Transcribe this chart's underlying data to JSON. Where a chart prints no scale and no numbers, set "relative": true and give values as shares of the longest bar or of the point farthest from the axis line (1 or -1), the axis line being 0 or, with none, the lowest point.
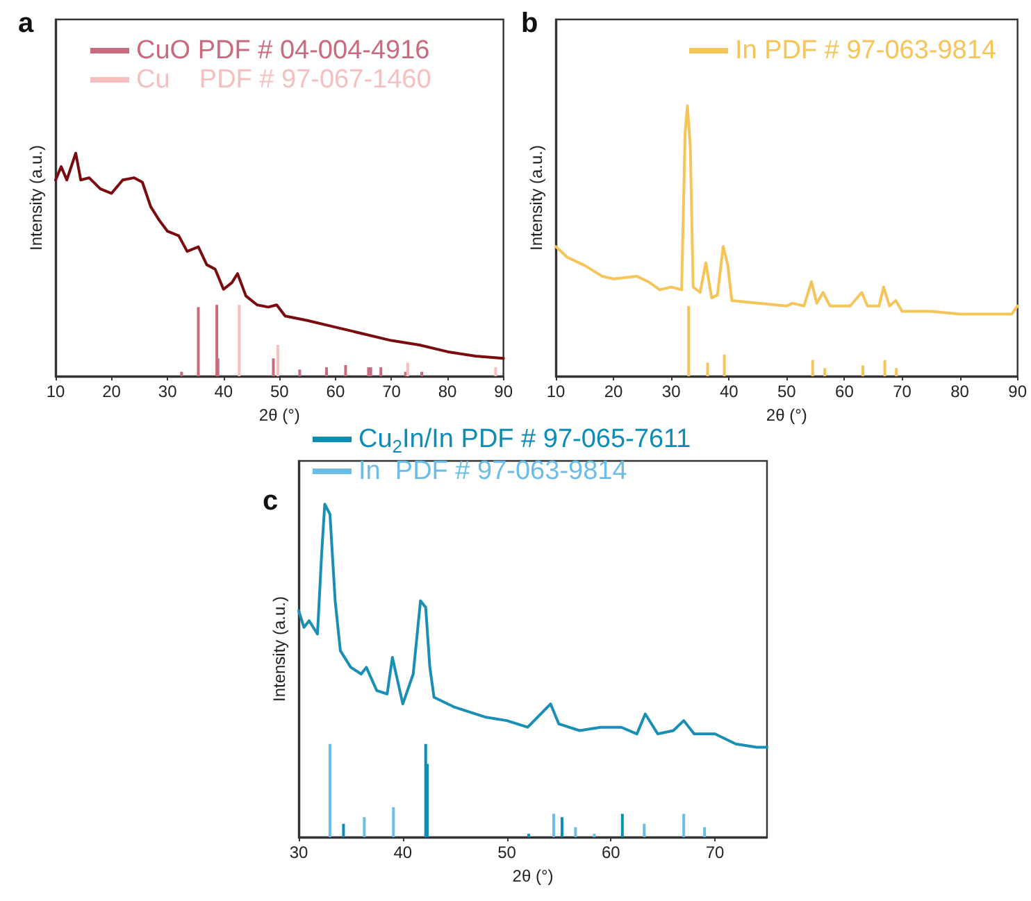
{
  "chart_data": [
    {
      "type": "line",
      "title": "a",
      "xlabel": "2θ (°)",
      "ylabel": "Intensity (a.u.)",
      "relative": true,
      "xlim": [
        10,
        90
      ],
      "xticks": [
        10,
        20,
        30,
        40,
        50,
        60,
        70,
        80,
        90
      ],
      "legend": "top",
      "grid": false,
      "marker": "none",
      "series": [
        {
          "color": "#7a0c10",
          "x": [
            10,
            11,
            12,
            13.6,
            14.5,
            16,
            18,
            20,
            22,
            24,
            25.5,
            27,
            28.5,
            30,
            32,
            33.5,
            35.5,
            37,
            38.5,
            40,
            41.5,
            42.5,
            44,
            46,
            48,
            49.5,
            51,
            55,
            60,
            65,
            70,
            75,
            80,
            85,
            90
          ],
          "values": [
            0.88,
            0.94,
            0.88,
            1.0,
            0.88,
            0.89,
            0.84,
            0.82,
            0.88,
            0.89,
            0.87,
            0.76,
            0.7,
            0.65,
            0.63,
            0.56,
            0.58,
            0.5,
            0.48,
            0.39,
            0.42,
            0.46,
            0.36,
            0.32,
            0.31,
            0.32,
            0.27,
            0.25,
            0.22,
            0.19,
            0.16,
            0.14,
            0.11,
            0.09,
            0.08
          ]
        },
        {
          "type": "bar",
          "name": "CuO PDF # 04-004-4916",
          "color": "#c96b7e",
          "x": [
            32.5,
            35.5,
            38.8,
            39.0,
            48.9,
            53.6,
            58.4,
            61.8,
            65.9,
            66.3,
            68.1,
            72.5,
            75.4
          ],
          "values": [
            0.02,
            0.31,
            0.32,
            0.08,
            0.08,
            0.03,
            0.04,
            0.05,
            0.04,
            0.04,
            0.04,
            0.02,
            0.02
          ]
        },
        {
          "type": "bar",
          "name": "Cu    PDF # 97-067-1460",
          "color": "#f6bfc0",
          "x": [
            42.8,
            49.7,
            72.9,
            88.6
          ],
          "values": [
            0.32,
            0.14,
            0.06,
            0.04
          ]
        }
      ]
    },
    {
      "type": "line",
      "title": "b",
      "xlabel": "2θ (°)",
      "ylabel": "Intensity (a.u.)",
      "relative": true,
      "xlim": [
        10,
        90
      ],
      "xticks": [
        10,
        20,
        30,
        40,
        50,
        60,
        70,
        80,
        90
      ],
      "legend": "top right",
      "grid": false,
      "marker": "none",
      "series": [
        {
          "color": "#f5c55a",
          "x": [
            10,
            12,
            15,
            18,
            20,
            24,
            26,
            28,
            30,
            31.8,
            32.4,
            32.8,
            33.3,
            33.8,
            35,
            36,
            37,
            38,
            39,
            39.8,
            40.5,
            45,
            50,
            51,
            53,
            54.3,
            55.2,
            56.3,
            57.5,
            61,
            63,
            64,
            66,
            66.8,
            67.8,
            68.9,
            70,
            75,
            80,
            85,
            89,
            90
          ],
          "values": [
            0.48,
            0.44,
            0.41,
            0.37,
            0.36,
            0.37,
            0.35,
            0.32,
            0.33,
            0.32,
            0.9,
            1.0,
            0.85,
            0.33,
            0.31,
            0.42,
            0.29,
            0.3,
            0.48,
            0.41,
            0.28,
            0.27,
            0.26,
            0.27,
            0.26,
            0.35,
            0.27,
            0.31,
            0.26,
            0.26,
            0.31,
            0.26,
            0.26,
            0.33,
            0.26,
            0.28,
            0.24,
            0.24,
            0.23,
            0.23,
            0.23,
            0.26
          ]
        },
        {
          "type": "bar",
          "name": "In PDF # 97-063-9814",
          "color": "#f5c55a",
          "x": [
            33.0,
            36.3,
            39.2,
            54.5,
            56.6,
            63.2,
            67.0,
            69.0
          ],
          "values": [
            0.26,
            0.05,
            0.08,
            0.06,
            0.03,
            0.04,
            0.06,
            0.03
          ]
        }
      ]
    },
    {
      "type": "line",
      "title": "c",
      "xlabel": "2θ (°)",
      "ylabel": "Intensity (a.u.)",
      "relative": true,
      "xlim": [
        30,
        75
      ],
      "xticks": [
        30,
        40,
        50,
        60,
        70
      ],
      "legend": "top",
      "grid": false,
      "marker": "none",
      "series": [
        {
          "color": "#1a8fb5",
          "x": [
            30,
            30.5,
            31,
            31.8,
            32.2,
            32.5,
            33,
            33.5,
            34,
            35,
            36,
            36.5,
            37.5,
            38.5,
            39,
            39.5,
            40,
            41,
            41.7,
            42.2,
            42.6,
            43,
            45,
            48,
            50,
            52,
            54.2,
            55,
            57,
            59,
            61,
            62.5,
            63.3,
            64.5,
            66,
            67,
            68,
            70,
            72,
            74,
            75
          ],
          "values": [
            0.68,
            0.63,
            0.65,
            0.61,
            0.85,
            1.0,
            0.97,
            0.71,
            0.56,
            0.51,
            0.49,
            0.51,
            0.44,
            0.43,
            0.54,
            0.47,
            0.4,
            0.49,
            0.71,
            0.69,
            0.51,
            0.42,
            0.39,
            0.36,
            0.35,
            0.33,
            0.4,
            0.34,
            0.32,
            0.33,
            0.33,
            0.31,
            0.37,
            0.31,
            0.32,
            0.35,
            0.31,
            0.31,
            0.28,
            0.27,
            0.27
          ]
        },
        {
          "type": "bar",
          "name": "Cu$_{2}$In/In PDF # 97-065-7611",
          "color": "#0d8db5",
          "x": [
            34.3,
            42.2,
            42.35,
            52.1,
            55.3,
            61.1
          ],
          "values": [
            0.04,
            0.28,
            0.22,
            0.01,
            0.06,
            0.07
          ]
        },
        {
          "type": "bar",
          "name": "In  PDF # 97-063-9814",
          "color": "#6bbde6",
          "x": [
            33.0,
            36.3,
            39.1,
            54.5,
            56.6,
            58.4,
            63.2,
            67.0,
            69.0
          ],
          "values": [
            0.28,
            0.06,
            0.09,
            0.07,
            0.03,
            0.01,
            0.04,
            0.07,
            0.03
          ]
        }
      ]
    }
  ]
}
